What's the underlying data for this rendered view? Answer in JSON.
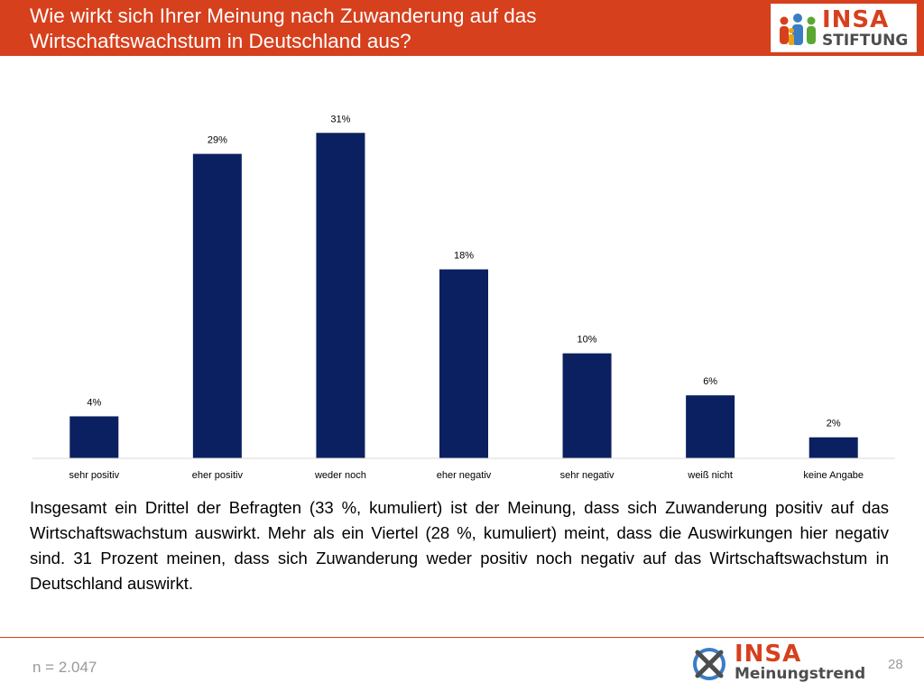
{
  "slide": {
    "title": "Wie wirkt sich Ihrer Meinung nach Zuwanderung auf das\nWirtschaftswachstum in Deutschland aus?",
    "description": "Insgesamt ein Drittel der Befragten (33 %, kumuliert) ist der Meinung, dass sich Zuwanderung positiv auf das Wirtschaftswachstum auswirkt. Mehr als ein Viertel (28 %, kumuliert) meint, dass die Auswirkungen hier negativ sind. 31 Prozent meinen, dass sich Zuwanderung weder positiv noch negativ auf das Wirtschaftswachstum in Deutschland auswirkt.",
    "sample_size": "n = 2.047",
    "page_number": "28",
    "header_color": "#d6401d"
  },
  "logo_top": {
    "brand": "INSA",
    "sub": "STIFTUNG"
  },
  "logo_bottom": {
    "brand": "INSA",
    "sub": "Meinungstrend"
  },
  "chart_data": {
    "type": "bar",
    "categories": [
      "sehr positiv",
      "eher positiv",
      "weder noch",
      "eher negativ",
      "sehr negativ",
      "weiß nicht",
      "keine Angabe"
    ],
    "values": [
      4,
      29,
      31,
      18,
      10,
      6,
      2
    ],
    "value_labels": [
      "4%",
      "29%",
      "31%",
      "18%",
      "10%",
      "6%",
      "2%"
    ],
    "unit": "%",
    "bar_color": "#0b2060",
    "ylim": [
      0,
      33
    ],
    "grid": false,
    "legend": "none"
  }
}
